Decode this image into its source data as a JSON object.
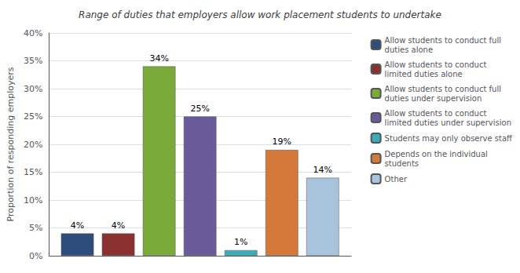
{
  "chart_data": {
    "type": "bar",
    "title": "Range of duties that employers allow work placement students to undertake",
    "ylabel": "Proportion of responding employers",
    "categories": [
      null
    ],
    "series": [
      {
        "name": "Allow students to conduct full\nduties alone",
        "color": "#2E4D7B",
        "values": [
          4
        ],
        "value_labels": [
          "4%"
        ]
      },
      {
        "name": "Allow students to conduct\nlimited duties alone",
        "color": "#8B3030",
        "values": [
          4
        ],
        "value_labels": [
          "4%"
        ]
      },
      {
        "name": "Allow students to conduct full\nduties under supervision",
        "color": "#7AAA3A",
        "values": [
          34
        ],
        "value_labels": [
          "34%"
        ]
      },
      {
        "name": "Allow students to conduct\nlimited duties under supervision",
        "color": "#6B5A9A",
        "values": [
          25
        ],
        "value_labels": [
          "25%"
        ]
      },
      {
        "name": "Students may only observe staff",
        "color": "#3AABB8",
        "values": [
          1
        ],
        "value_labels": [
          "1%"
        ]
      },
      {
        "name": "Depends on the individual\nstudents",
        "color": "#D4793A",
        "values": [
          19
        ],
        "value_labels": [
          "19%"
        ]
      },
      {
        "name": "Other",
        "color": "#A8C4DC",
        "values": [
          14
        ],
        "value_labels": [
          "14%"
        ]
      }
    ],
    "ylim": [
      0,
      40
    ],
    "yticks": [
      {
        "value": 0,
        "label": "0%"
      },
      {
        "value": 5,
        "label": "5%"
      },
      {
        "value": 10,
        "label": "10%"
      },
      {
        "value": 15,
        "label": "15%"
      },
      {
        "value": 20,
        "label": "20%"
      },
      {
        "value": 25,
        "label": "25%"
      },
      {
        "value": 30,
        "label": "30%"
      },
      {
        "value": 35,
        "label": "35%"
      },
      {
        "value": 40,
        "label": "40%"
      }
    ],
    "grid": true,
    "legend": "right",
    "data_labels": true,
    "tick_labels": "y"
  }
}
